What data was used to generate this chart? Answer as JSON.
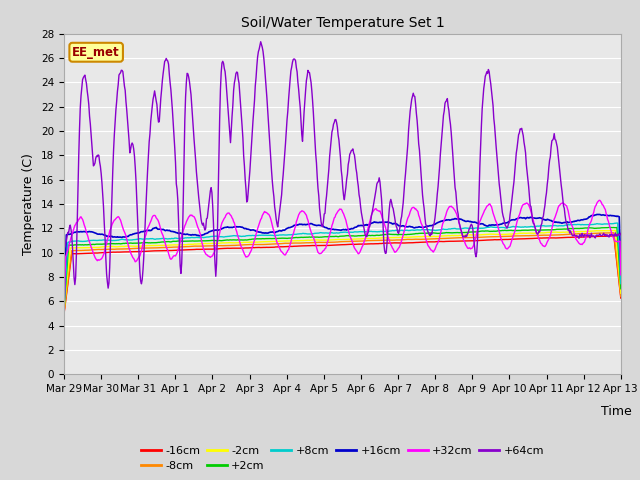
{
  "title": "Soil/Water Temperature Set 1",
  "xlabel": "Time",
  "ylabel": "Temperature (C)",
  "ylim": [
    0,
    28
  ],
  "yticks": [
    0,
    2,
    4,
    6,
    8,
    10,
    12,
    14,
    16,
    18,
    20,
    22,
    24,
    26,
    28
  ],
  "x_tick_labels": [
    "Mar 29",
    "Mar 30",
    "Mar 31",
    "Apr 1",
    "Apr 2",
    "Apr 3",
    "Apr 4",
    "Apr 5",
    "Apr 6",
    "Apr 7",
    "Apr 8",
    "Apr 9",
    "Apr 10",
    "Apr 11",
    "Apr 12",
    "Apr 13"
  ],
  "series_colors": [
    "#ff0000",
    "#ff8800",
    "#ffff00",
    "#00cc00",
    "#00cccc",
    "#0000cc",
    "#ff00ff",
    "#8800cc"
  ],
  "series_labels": [
    "-16cm",
    "-8cm",
    "-2cm",
    "+2cm",
    "+8cm",
    "+16cm",
    "+32cm",
    "+64cm"
  ],
  "annotation_text": "EE_met",
  "annotation_bg": "#ffff99",
  "annotation_border": "#cc8800",
  "fig_bg_color": "#d8d8d8",
  "plot_bg_color": "#e8e8e8",
  "grid_color": "#ffffff"
}
